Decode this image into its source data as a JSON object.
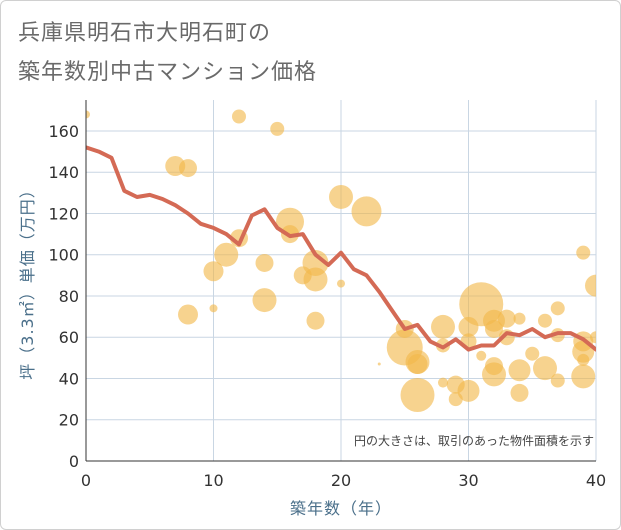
{
  "title_lines": [
    "兵庫県明石市大明石町の",
    "築年数別中古マンション価格"
  ],
  "chart_data": {
    "type": "scatter",
    "title": "兵庫県明石市大明石町の築年数別中古マンション価格",
    "xlabel": "築年数（年）",
    "ylabel": "坪（3.3㎡）単価（万円）",
    "xlim": [
      0,
      40
    ],
    "ylim": [
      0,
      175
    ],
    "xticks": [
      0,
      10,
      20,
      30,
      40
    ],
    "yticks": [
      0,
      20,
      40,
      60,
      80,
      100,
      120,
      140,
      160
    ],
    "grid": true,
    "annotation": "円の大きさは、取引のあった物件面積を示す",
    "colors": {
      "bubble": "#f2b84b",
      "line": "#d46a55",
      "grid": "#c9d6e3"
    },
    "bubbles": [
      {
        "x": 0,
        "y": 168,
        "r": 4
      },
      {
        "x": 7,
        "y": 143,
        "r": 10
      },
      {
        "x": 8,
        "y": 142,
        "r": 9
      },
      {
        "x": 12,
        "y": 167,
        "r": 7
      },
      {
        "x": 15,
        "y": 161,
        "r": 7
      },
      {
        "x": 12,
        "y": 108,
        "r": 9
      },
      {
        "x": 11,
        "y": 100,
        "r": 12
      },
      {
        "x": 14,
        "y": 96,
        "r": 9
      },
      {
        "x": 10,
        "y": 92,
        "r": 10
      },
      {
        "x": 10,
        "y": 74,
        "r": 4
      },
      {
        "x": 8,
        "y": 71,
        "r": 10
      },
      {
        "x": 14,
        "y": 78,
        "r": 12
      },
      {
        "x": 16,
        "y": 116,
        "r": 14
      },
      {
        "x": 16,
        "y": 110,
        "r": 9
      },
      {
        "x": 17,
        "y": 90,
        "r": 9
      },
      {
        "x": 18,
        "y": 96,
        "r": 13
      },
      {
        "x": 18,
        "y": 88,
        "r": 12
      },
      {
        "x": 18,
        "y": 68,
        "r": 9
      },
      {
        "x": 20,
        "y": 128,
        "r": 12
      },
      {
        "x": 22,
        "y": 121,
        "r": 15
      },
      {
        "x": 20,
        "y": 86,
        "r": 4
      },
      {
        "x": 23,
        "y": 47,
        "r": 1.5
      },
      {
        "x": 25,
        "y": 64,
        "r": 9
      },
      {
        "x": 25,
        "y": 55,
        "r": 18
      },
      {
        "x": 26,
        "y": 47,
        "r": 10
      },
      {
        "x": 26,
        "y": 32,
        "r": 17
      },
      {
        "x": 26,
        "y": 48,
        "r": 12
      },
      {
        "x": 28,
        "y": 65,
        "r": 12
      },
      {
        "x": 28,
        "y": 38,
        "r": 5
      },
      {
        "x": 28,
        "y": 56,
        "r": 7
      },
      {
        "x": 29,
        "y": 37,
        "r": 9
      },
      {
        "x": 29,
        "y": 30,
        "r": 7
      },
      {
        "x": 30,
        "y": 34,
        "r": 11
      },
      {
        "x": 30,
        "y": 65,
        "r": 10
      },
      {
        "x": 30,
        "y": 58,
        "r": 8
      },
      {
        "x": 31,
        "y": 76,
        "r": 22
      },
      {
        "x": 31,
        "y": 51,
        "r": 5
      },
      {
        "x": 32,
        "y": 42,
        "r": 12
      },
      {
        "x": 32,
        "y": 46,
        "r": 9
      },
      {
        "x": 32,
        "y": 68,
        "r": 11
      },
      {
        "x": 32,
        "y": 64,
        "r": 9
      },
      {
        "x": 33,
        "y": 69,
        "r": 9
      },
      {
        "x": 33,
        "y": 60,
        "r": 8
      },
      {
        "x": 34,
        "y": 44,
        "r": 11
      },
      {
        "x": 34,
        "y": 33,
        "r": 9
      },
      {
        "x": 34,
        "y": 69,
        "r": 6
      },
      {
        "x": 35,
        "y": 52,
        "r": 7
      },
      {
        "x": 36,
        "y": 45,
        "r": 12
      },
      {
        "x": 36,
        "y": 68,
        "r": 7
      },
      {
        "x": 37,
        "y": 74,
        "r": 7
      },
      {
        "x": 37,
        "y": 39,
        "r": 7
      },
      {
        "x": 37,
        "y": 61,
        "r": 7
      },
      {
        "x": 39,
        "y": 101,
        "r": 7
      },
      {
        "x": 39,
        "y": 58,
        "r": 10
      },
      {
        "x": 39,
        "y": 53,
        "r": 11
      },
      {
        "x": 39,
        "y": 41,
        "r": 12
      },
      {
        "x": 39,
        "y": 49,
        "r": 6
      },
      {
        "x": 40,
        "y": 85,
        "r": 11
      },
      {
        "x": 40,
        "y": 60,
        "r": 6
      }
    ],
    "series": [
      {
        "name": "",
        "x": [
          0,
          1,
          2,
          3,
          4,
          5,
          6,
          7,
          8,
          9,
          10,
          11,
          12,
          13,
          14,
          15,
          16,
          17,
          18,
          19,
          20,
          21,
          22,
          23,
          24,
          25,
          26,
          27,
          28,
          29,
          30,
          31,
          32,
          33,
          34,
          35,
          36,
          37,
          38,
          39,
          40
        ],
        "y": [
          152,
          150,
          147,
          131,
          128,
          129,
          127,
          124,
          120,
          115,
          113,
          110,
          105,
          119,
          122,
          113,
          109,
          110,
          100,
          95,
          101,
          93,
          90,
          82,
          73,
          64,
          66,
          58,
          55,
          59,
          54,
          56,
          56,
          62,
          61,
          64,
          60,
          62,
          62,
          59,
          54
        ]
      }
    ]
  }
}
